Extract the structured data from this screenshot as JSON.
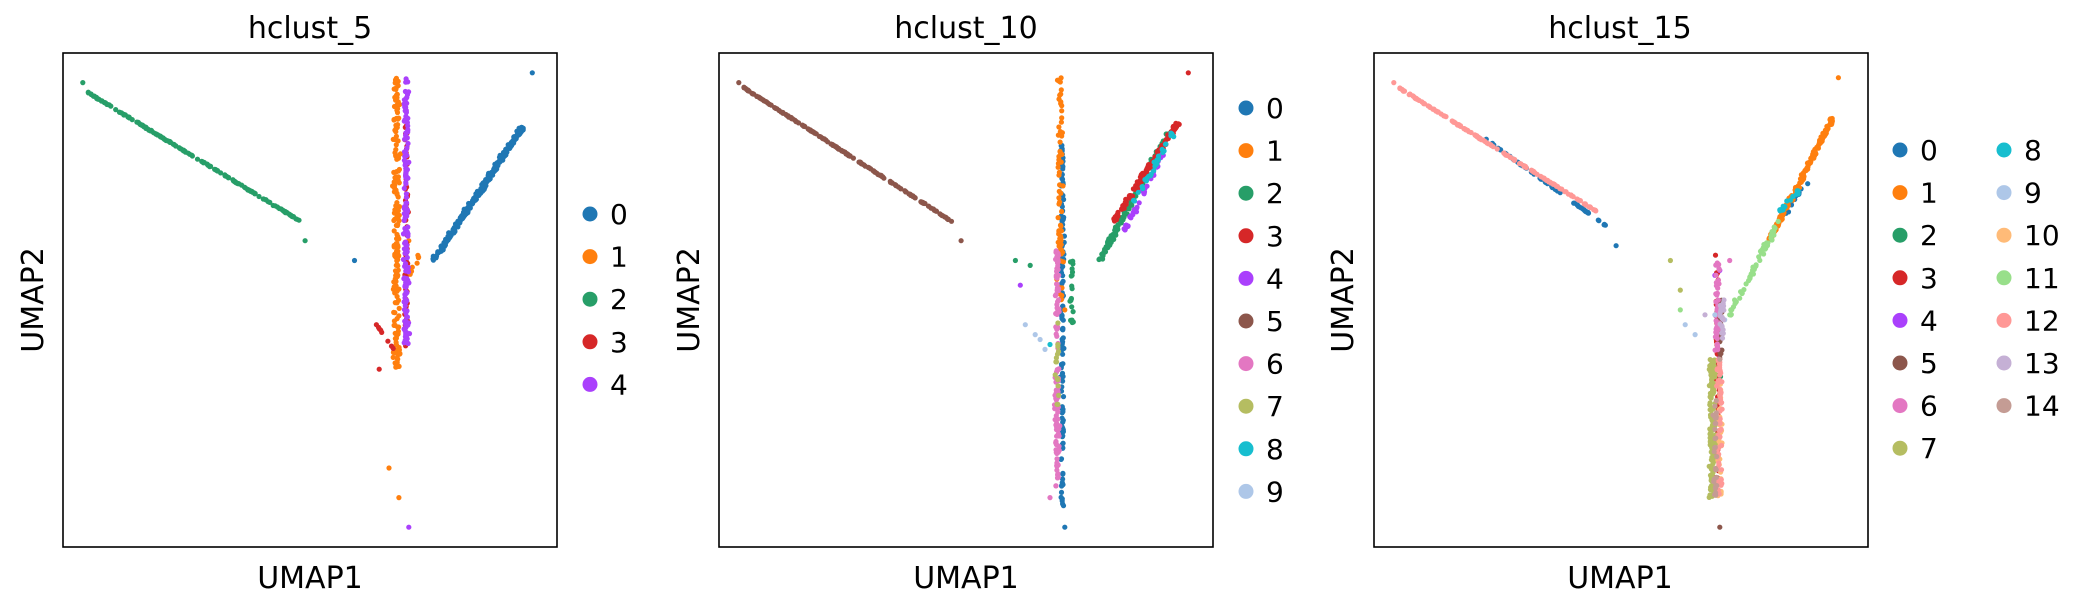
{
  "palette": [
    "#1f77b4",
    "#ff7f0e",
    "#279e68",
    "#d62728",
    "#aa40fc",
    "#8c564b",
    "#e377c2",
    "#b5bd61",
    "#17becf",
    "#aec7e8",
    "#ffbb78",
    "#98df8a",
    "#ff9896",
    "#c5b0d5",
    "#c49c94"
  ],
  "chart_data": [
    {
      "type": "scatter",
      "title": "hclust_5",
      "xlabel": "UMAP1",
      "ylabel": "UMAP2",
      "grid": false,
      "legend": {
        "placement": "right",
        "columns": 1,
        "entries": [
          "0",
          "1",
          "2",
          "3",
          "4"
        ]
      },
      "series": [
        {
          "name": "0",
          "trunk": [],
          "arms": [
            [
              0.75,
              0.58,
              0.93,
              0.85,
              260
            ]
          ],
          "extra": [
            [
              0.95,
              0.96
            ],
            [
              0.59,
              0.58
            ]
          ]
        },
        {
          "name": "1",
          "trunk": [
            [
              0.675,
              0.36,
              0.95,
              180,
              0.008
            ]
          ],
          "arms": [
            [
              0.7,
              0.55,
              0.72,
              0.59,
              12
            ]
          ],
          "extra": [
            [
              0.68,
              0.1
            ],
            [
              0.66,
              0.16
            ],
            [
              0.7,
              0.62
            ]
          ]
        },
        {
          "name": "2",
          "trunk": [],
          "arms": [
            [
              0.05,
              0.92,
              0.48,
              0.66,
              180
            ]
          ],
          "extra": [
            [
              0.04,
              0.94
            ],
            [
              0.49,
              0.62
            ]
          ]
        },
        {
          "name": "3",
          "trunk": [
            [
              0.695,
              0.4,
              0.88,
              70,
              0.004
            ]
          ],
          "arms": [
            [
              0.62,
              0.47,
              0.67,
              0.4,
              8
            ]
          ],
          "extra": [
            [
              0.64,
              0.36
            ]
          ]
        },
        {
          "name": "4",
          "trunk": [
            [
              0.695,
              0.4,
              0.95,
              150,
              0.006
            ]
          ],
          "arms": [],
          "extra": [
            [
              0.7,
              0.04
            ]
          ]
        }
      ]
    },
    {
      "type": "scatter",
      "title": "hclust_10",
      "xlabel": "UMAP1",
      "ylabel": "UMAP2",
      "grid": false,
      "legend": {
        "placement": "right",
        "columns": 1,
        "entries": [
          "0",
          "1",
          "2",
          "3",
          "4",
          "5",
          "6",
          "7",
          "8",
          "9"
        ]
      },
      "series": [
        {
          "name": "0",
          "trunk": [
            [
              0.695,
              0.08,
              0.82,
              140,
              0.004
            ]
          ],
          "arms": [],
          "extra": [
            [
              0.7,
              0.04
            ]
          ]
        },
        {
          "name": "1",
          "trunk": [
            [
              0.69,
              0.5,
              0.95,
              70,
              0.007
            ]
          ],
          "arms": [],
          "extra": [
            [
              0.7,
              0.48
            ]
          ]
        },
        {
          "name": "2",
          "trunk": [
            [
              0.715,
              0.45,
              0.58,
              20,
              0.005
            ]
          ],
          "arms": [
            [
              0.77,
              0.58,
              0.91,
              0.84,
              120
            ]
          ],
          "extra": [
            [
              0.6,
              0.58
            ],
            [
              0.63,
              0.57
            ]
          ]
        },
        {
          "name": "3",
          "trunk": [],
          "arms": [
            [
              0.8,
              0.66,
              0.93,
              0.86,
              120
            ]
          ],
          "extra": [
            [
              0.95,
              0.96
            ]
          ]
        },
        {
          "name": "4",
          "trunk": [],
          "arms": [
            [
              0.82,
              0.64,
              0.9,
              0.8,
              40
            ]
          ],
          "extra": [
            [
              0.61,
              0.53
            ]
          ]
        },
        {
          "name": "5",
          "trunk": [],
          "arms": [
            [
              0.05,
              0.93,
              0.47,
              0.66,
              180
            ]
          ],
          "extra": [
            [
              0.04,
              0.94
            ],
            [
              0.49,
              0.62
            ]
          ]
        },
        {
          "name": "6",
          "trunk": [
            [
              0.685,
              0.12,
              0.6,
              120,
              0.006
            ]
          ],
          "arms": [],
          "extra": [
            [
              0.67,
              0.1
            ]
          ]
        },
        {
          "name": "7",
          "trunk": [
            [
              0.685,
              0.28,
              0.48,
              15,
              0.004
            ]
          ],
          "arms": [],
          "extra": []
        },
        {
          "name": "8",
          "trunk": [],
          "arms": [
            [
              0.84,
              0.7,
              0.92,
              0.84,
              30
            ]
          ],
          "extra": [
            [
              0.67,
              0.41
            ]
          ]
        },
        {
          "name": "9",
          "trunk": [],
          "arms": [],
          "extra": [
            [
              0.62,
              0.45
            ],
            [
              0.64,
              0.43
            ],
            [
              0.66,
              0.4
            ],
            [
              0.65,
              0.42
            ]
          ]
        }
      ]
    },
    {
      "type": "scatter",
      "title": "hclust_15",
      "xlabel": "UMAP1",
      "ylabel": "UMAP2",
      "grid": false,
      "legend": {
        "placement": "right",
        "columns": 2,
        "entries": [
          "0",
          "1",
          "2",
          "3",
          "4",
          "5",
          "6",
          "7",
          "8",
          "9",
          "10",
          "11",
          "12",
          "13",
          "14"
        ]
      },
      "series": [
        {
          "name": "0",
          "trunk": [],
          "arms": [
            [
              0.22,
              0.83,
              0.47,
              0.65,
              60
            ],
            [
              0.82,
              0.66,
              0.88,
              0.74,
              15
            ]
          ],
          "extra": [
            [
              0.49,
              0.61
            ]
          ]
        },
        {
          "name": "1",
          "trunk": [],
          "arms": [
            [
              0.8,
              0.62,
              0.93,
              0.87,
              160
            ]
          ],
          "extra": [
            [
              0.94,
              0.95
            ]
          ]
        },
        {
          "name": "2",
          "trunk": [
            [
              0.7,
              0.3,
              0.5,
              10,
              0.004
            ]
          ],
          "arms": [],
          "extra": []
        },
        {
          "name": "3",
          "trunk": [
            [
              0.695,
              0.14,
              0.6,
              60,
              0.005
            ]
          ],
          "arms": [],
          "extra": [
            [
              0.7,
              0.38
            ]
          ]
        },
        {
          "name": "4",
          "trunk": [],
          "arms": [],
          "extra": [
            [
              0.69,
              0.55
            ],
            [
              0.7,
              0.56
            ]
          ]
        },
        {
          "name": "5",
          "trunk": [
            [
              0.7,
              0.38,
              0.5,
              40,
              0.006
            ]
          ],
          "arms": [],
          "extra": [
            [
              0.7,
              0.04
            ]
          ]
        },
        {
          "name": "6",
          "trunk": [
            [
              0.695,
              0.38,
              0.58,
              50,
              0.006
            ]
          ],
          "arms": [],
          "extra": [
            [
              0.72,
              0.58
            ]
          ]
        },
        {
          "name": "7",
          "trunk": [
            [
              0.685,
              0.1,
              0.38,
              150,
              0.008
            ]
          ],
          "arms": [],
          "extra": [
            [
              0.6,
              0.58
            ],
            [
              0.62,
              0.52
            ]
          ]
        },
        {
          "name": "8",
          "trunk": [],
          "arms": [
            [
              0.82,
              0.68,
              0.86,
              0.72,
              15
            ]
          ],
          "extra": []
        },
        {
          "name": "9",
          "trunk": [],
          "arms": [],
          "extra": [
            [
              0.63,
              0.45
            ],
            [
              0.65,
              0.43
            ],
            [
              0.69,
              0.47
            ],
            [
              0.71,
              0.46
            ]
          ]
        },
        {
          "name": "10",
          "trunk": [
            [
              0.7,
              0.1,
              0.35,
              40,
              0.006
            ]
          ],
          "arms": [],
          "extra": []
        },
        {
          "name": "11",
          "trunk": [],
          "arms": [
            [
              0.72,
              0.47,
              0.82,
              0.66,
              60
            ]
          ],
          "extra": [
            [
              0.62,
              0.48
            ],
            [
              0.73,
              0.5
            ]
          ]
        },
        {
          "name": "12",
          "trunk": [
            [
              0.7,
              0.1,
              0.38,
              60,
              0.007
            ]
          ],
          "arms": [
            [
              0.05,
              0.93,
              0.45,
              0.68,
              150
            ]
          ],
          "extra": [
            [
              0.04,
              0.94
            ]
          ]
        },
        {
          "name": "13",
          "trunk": [
            [
              0.705,
              0.42,
              0.5,
              20,
              0.005
            ]
          ],
          "arms": [],
          "extra": [
            [
              0.67,
              0.47
            ]
          ]
        },
        {
          "name": "14",
          "trunk": [
            [
              0.69,
              0.1,
              0.3,
              30,
              0.005
            ]
          ],
          "arms": [],
          "extra": [
            [
              0.7,
              0.38
            ]
          ]
        }
      ]
    }
  ]
}
